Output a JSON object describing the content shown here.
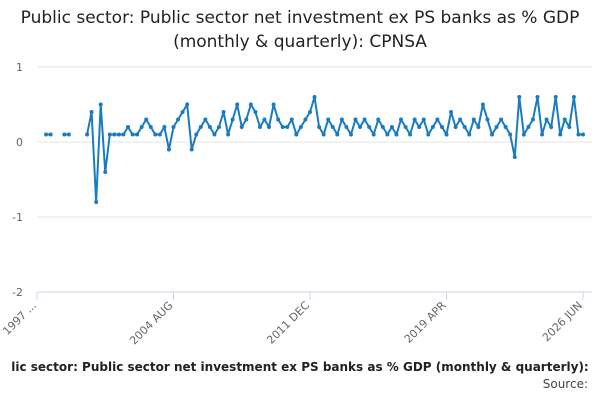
{
  "chart_data": {
    "type": "line",
    "title": "Public sector: Public sector net investment ex PS banks as % GDP (monthly & quarterly): CPNSA",
    "footer": "lic sector: Public sector net investment ex PS banks as % GDP (monthly & quarterly):",
    "source": "Source:",
    "categories": [
      "1997 ...",
      null,
      null,
      null,
      null,
      null,
      null,
      null,
      null,
      null,
      null,
      null,
      null,
      null,
      null,
      null,
      null,
      null,
      null,
      null,
      null,
      null,
      null,
      null,
      null,
      null,
      null,
      null,
      null,
      null,
      "2004 AUG",
      null,
      null,
      null,
      null,
      null,
      null,
      null,
      null,
      null,
      null,
      null,
      null,
      null,
      null,
      null,
      null,
      null,
      null,
      null,
      null,
      null,
      null,
      null,
      null,
      null,
      null,
      null,
      null,
      null,
      "2011 DEC",
      null,
      null,
      null,
      null,
      null,
      null,
      null,
      null,
      null,
      null,
      null,
      null,
      null,
      null,
      null,
      null,
      null,
      null,
      null,
      null,
      null,
      null,
      null,
      null,
      null,
      null,
      null,
      null,
      null,
      "2019 APR",
      null,
      null,
      null,
      null,
      null,
      null,
      null,
      null,
      null,
      null,
      null,
      null,
      null,
      null,
      null,
      null,
      null,
      null,
      null,
      null,
      null,
      null,
      null,
      null,
      null,
      null,
      null,
      null,
      null,
      "2026 JUN"
    ],
    "series": [
      {
        "name": "CPNSA",
        "color": "#1a7cc0",
        "values": [
          null,
          null,
          0.1,
          0.1,
          null,
          null,
          0.1,
          0.1,
          null,
          null,
          null,
          0.1,
          0.4,
          -0.8,
          0.5,
          -0.4,
          0.1,
          0.1,
          0.1,
          0.1,
          0.2,
          0.1,
          0.1,
          0.2,
          0.3,
          0.2,
          0.1,
          0.1,
          0.2,
          -0.1,
          0.2,
          0.3,
          0.4,
          0.5,
          -0.1,
          0.1,
          0.2,
          0.3,
          0.2,
          0.1,
          0.2,
          0.4,
          0.1,
          0.3,
          0.5,
          0.2,
          0.3,
          0.5,
          0.4,
          0.2,
          0.3,
          0.2,
          0.5,
          0.3,
          0.2,
          0.2,
          0.3,
          0.1,
          0.2,
          0.3,
          0.4,
          0.6,
          0.2,
          0.1,
          0.3,
          0.2,
          0.1,
          0.3,
          0.2,
          0.1,
          0.3,
          0.2,
          0.3,
          0.2,
          0.1,
          0.3,
          0.2,
          0.1,
          0.2,
          0.1,
          0.3,
          0.2,
          0.1,
          0.3,
          0.2,
          0.3,
          0.1,
          0.2,
          0.3,
          0.2,
          0.1,
          0.4,
          0.2,
          0.3,
          0.2,
          0.1,
          0.3,
          0.2,
          0.5,
          0.3,
          0.1,
          0.2,
          0.3,
          0.2,
          0.1,
          -0.2,
          0.6,
          0.1,
          0.2,
          0.3,
          0.6,
          0.1,
          0.3,
          0.2,
          0.6,
          0.1,
          0.3,
          0.2,
          0.6,
          0.1,
          0.1
        ]
      }
    ],
    "ylim": [
      -2,
      1
    ],
    "yticks": [
      -2,
      -1,
      0,
      1
    ],
    "grid": true
  }
}
